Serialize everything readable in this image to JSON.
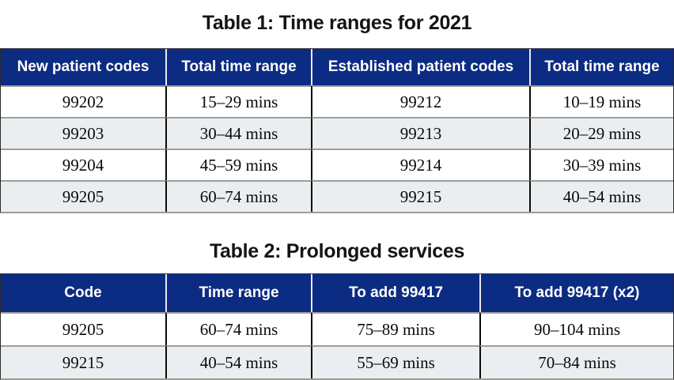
{
  "colors": {
    "header_bg": "#0c2b82",
    "header_text": "#ffffff",
    "row_alt_bg": "#ebeef0",
    "row_separator": "#9c9c9c",
    "column_separator": "#0a0a0a",
    "title_text": "#141414"
  },
  "table1": {
    "title": "Table 1: Time ranges for 2021",
    "headers": [
      "New patient codes",
      "Total time range",
      "Established patient codes",
      "Total time range"
    ],
    "rows": [
      [
        "99202",
        "15–29 mins",
        "99212",
        "10–19 mins"
      ],
      [
        "99203",
        "30–44 mins",
        "99213",
        "20–29 mins"
      ],
      [
        "99204",
        "45–59 mins",
        "99214",
        "30–39 mins"
      ],
      [
        "99205",
        "60–74 mins",
        "99215",
        "40–54 mins"
      ]
    ]
  },
  "table2": {
    "title": "Table 2: Prolonged services",
    "headers": [
      "Code",
      "Time range",
      "To add 99417",
      "To add 99417 (x2)"
    ],
    "rows": [
      [
        "99205",
        "60–74 mins",
        "75–89 mins",
        "90–104 mins"
      ],
      [
        "99215",
        "40–54 mins",
        "55–69 mins",
        "70–84 mins"
      ]
    ]
  }
}
